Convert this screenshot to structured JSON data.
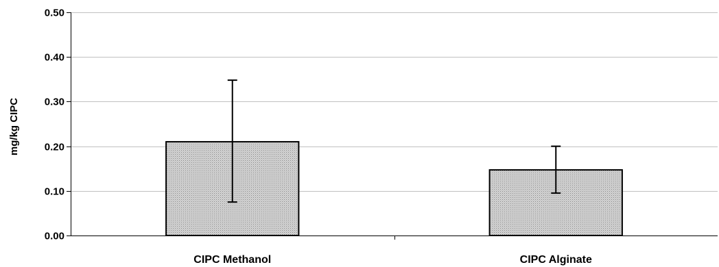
{
  "chart_data": {
    "type": "bar",
    "categories": [
      "CIPC Methanol",
      "CIPC Alginate"
    ],
    "values": [
      0.21,
      0.147
    ],
    "error_low": [
      0.075,
      0.095
    ],
    "error_high": [
      0.348,
      0.2
    ],
    "title": "",
    "xlabel": "",
    "ylabel": "mg/kg CIPC",
    "ylim": [
      0,
      0.5
    ],
    "yticks": [
      0.0,
      0.1,
      0.2,
      0.3,
      0.4,
      0.5
    ],
    "ytick_labels": [
      "0.00",
      "0.10",
      "0.20",
      "0.30",
      "0.40",
      "0.50"
    ],
    "grid": true,
    "legend": "none",
    "bar_color": "#c8c8c8",
    "bar_pattern": "fine-dot",
    "bar_edge_color": "#000000",
    "grid_color": "#c0c0c0"
  }
}
